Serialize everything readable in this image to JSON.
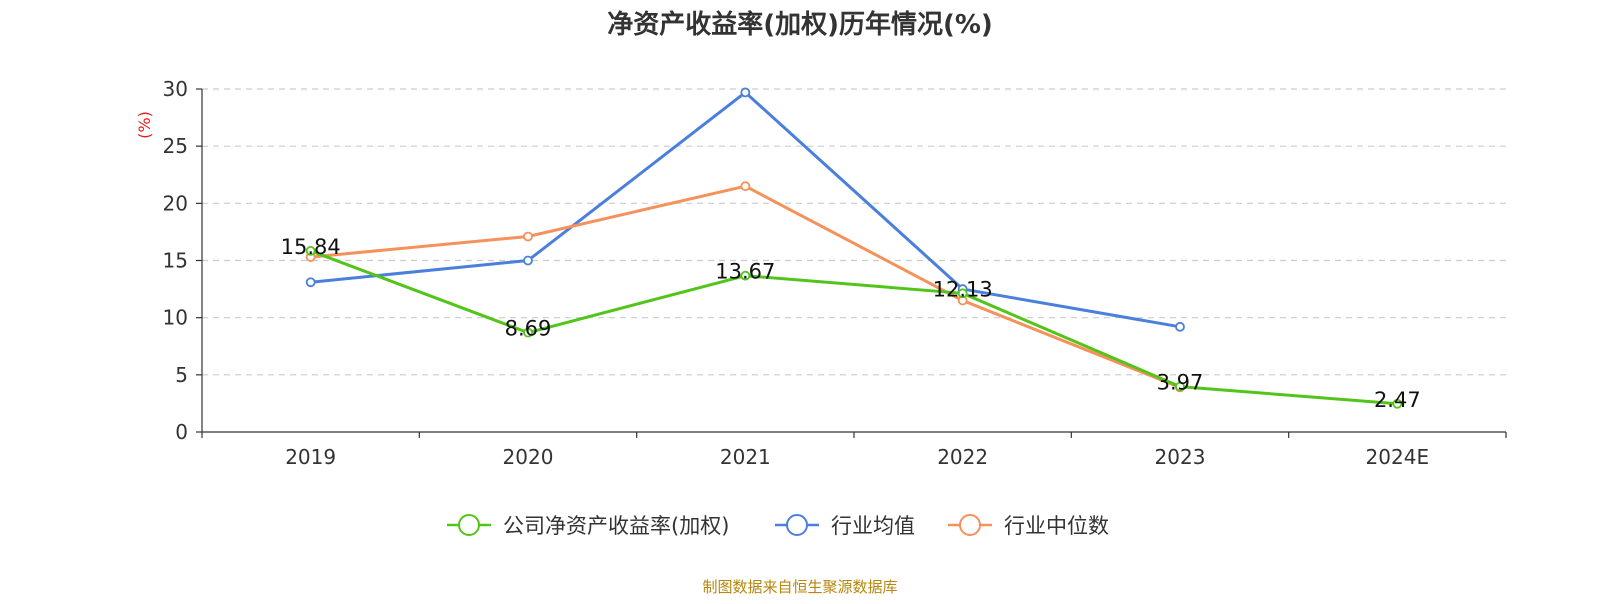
{
  "chart_data": {
    "type": "line",
    "title": "净资产收益率(加权)历年情况(%)",
    "ylabel": "(%)",
    "ylabel_color": "#e02020",
    "categories": [
      "2019",
      "2020",
      "2021",
      "2022",
      "2023",
      "2024E"
    ],
    "ylim": [
      0,
      30
    ],
    "yticks": [
      "0",
      "5",
      "10",
      "15",
      "20",
      "25",
      "30"
    ],
    "grid": true,
    "legend_position": "bottom",
    "series": [
      {
        "name": "公司净资产收益率(加权)",
        "color": "#52c41a",
        "values": [
          15.84,
          8.69,
          13.67,
          12.13,
          3.97,
          2.47
        ],
        "labels": [
          "15.84",
          "8.69",
          "13.67",
          "12.13",
          "3.97",
          "2.47"
        ]
      },
      {
        "name": "行业均值",
        "color": "#4a7fdc",
        "values": [
          13.1,
          15.0,
          29.7,
          12.5,
          9.2,
          null
        ]
      },
      {
        "name": "行业中位数",
        "color": "#f5915a",
        "values": [
          15.3,
          17.1,
          21.5,
          11.5,
          3.9,
          null
        ]
      }
    ],
    "source": "制图数据来自恒生聚源数据库",
    "source_color": "#b8860b"
  }
}
